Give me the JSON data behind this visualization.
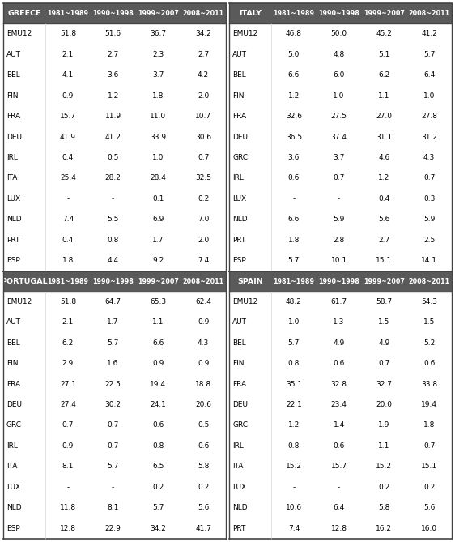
{
  "header_bg": "#5a5a5a",
  "header_text_color": "#ffffff",
  "cell_bg": "#ffffff",
  "cell_text_color": "#000000",
  "period_cols": [
    "1981~1989",
    "1990~1998",
    "1999~2007",
    "2008~2011"
  ],
  "tables": [
    {
      "country": "GREECE",
      "rows": [
        [
          "EMU12",
          "51.8",
          "51.6",
          "36.7",
          "34.2"
        ],
        [
          "AUT",
          "2.1",
          "2.7",
          "2.3",
          "2.7"
        ],
        [
          "BEL",
          "4.1",
          "3.6",
          "3.7",
          "4.2"
        ],
        [
          "FIN",
          "0.9",
          "1.2",
          "1.8",
          "2.0"
        ],
        [
          "FRA",
          "15.7",
          "11.9",
          "11.0",
          "10.7"
        ],
        [
          "DEU",
          "41.9",
          "41.2",
          "33.9",
          "30.6"
        ],
        [
          "IRL",
          "0.4",
          "0.5",
          "1.0",
          "0.7"
        ],
        [
          "ITA",
          "25.4",
          "28.2",
          "28.4",
          "32.5"
        ],
        [
          "LUX",
          "-",
          "-",
          "0.1",
          "0.2"
        ],
        [
          "NLD",
          "7.4",
          "5.5",
          "6.9",
          "7.0"
        ],
        [
          "PRT",
          "0.4",
          "0.8",
          "1.7",
          "2.0"
        ],
        [
          "ESP",
          "1.8",
          "4.4",
          "9.2",
          "7.4"
        ]
      ]
    },
    {
      "country": "ITALY",
      "rows": [
        [
          "EMU12",
          "46.8",
          "50.0",
          "45.2",
          "41.2"
        ],
        [
          "AUT",
          "5.0",
          "4.8",
          "5.1",
          "5.7"
        ],
        [
          "BEL",
          "6.6",
          "6.0",
          "6.2",
          "6.4"
        ],
        [
          "FIN",
          "1.2",
          "1.0",
          "1.1",
          "1.0"
        ],
        [
          "FRA",
          "32.6",
          "27.5",
          "27.0",
          "27.8"
        ],
        [
          "DEU",
          "36.5",
          "37.4",
          "31.1",
          "31.2"
        ],
        [
          "GRC",
          "3.6",
          "3.7",
          "4.6",
          "4.3"
        ],
        [
          "IRL",
          "0.6",
          "0.7",
          "1.2",
          "0.7"
        ],
        [
          "LUX",
          "-",
          "-",
          "0.4",
          "0.3"
        ],
        [
          "NLD",
          "6.6",
          "5.9",
          "5.6",
          "5.9"
        ],
        [
          "PRT",
          "1.8",
          "2.8",
          "2.7",
          "2.5"
        ],
        [
          "ESP",
          "5.7",
          "10.1",
          "15.1",
          "14.1"
        ]
      ]
    },
    {
      "country": "PORTUGAL",
      "rows": [
        [
          "EMU12",
          "51.8",
          "64.7",
          "65.3",
          "62.4"
        ],
        [
          "AUT",
          "2.1",
          "1.7",
          "1.1",
          "0.9"
        ],
        [
          "BEL",
          "6.2",
          "5.7",
          "6.6",
          "4.3"
        ],
        [
          "FIN",
          "2.9",
          "1.6",
          "0.9",
          "0.9"
        ],
        [
          "FRA",
          "27.1",
          "22.5",
          "19.4",
          "18.8"
        ],
        [
          "DEU",
          "27.4",
          "30.2",
          "24.1",
          "20.6"
        ],
        [
          "GRC",
          "0.7",
          "0.7",
          "0.6",
          "0.5"
        ],
        [
          "IRL",
          "0.9",
          "0.7",
          "0.8",
          "0.6"
        ],
        [
          "ITA",
          "8.1",
          "5.7",
          "6.5",
          "5.8"
        ],
        [
          "LUX",
          "-",
          "-",
          "0.2",
          "0.2"
        ],
        [
          "NLD",
          "11.8",
          "8.1",
          "5.7",
          "5.6"
        ],
        [
          "ESP",
          "12.8",
          "22.9",
          "34.2",
          "41.7"
        ]
      ]
    },
    {
      "country": "SPAIN",
      "rows": [
        [
          "EMU12",
          "48.2",
          "61.7",
          "58.7",
          "54.3"
        ],
        [
          "AUT",
          "1.0",
          "1.3",
          "1.5",
          "1.5"
        ],
        [
          "BEL",
          "5.7",
          "4.9",
          "4.9",
          "5.2"
        ],
        [
          "FIN",
          "0.8",
          "0.6",
          "0.7",
          "0.6"
        ],
        [
          "FRA",
          "35.1",
          "32.8",
          "32.7",
          "33.8"
        ],
        [
          "DEU",
          "22.1",
          "23.4",
          "20.0",
          "19.4"
        ],
        [
          "GRC",
          "1.2",
          "1.4",
          "1.9",
          "1.8"
        ],
        [
          "IRL",
          "0.8",
          "0.6",
          "1.1",
          "0.7"
        ],
        [
          "ITA",
          "15.2",
          "15.7",
          "15.2",
          "15.1"
        ],
        [
          "LUX",
          "-",
          "-",
          "0.2",
          "0.2"
        ],
        [
          "NLD",
          "10.6",
          "6.4",
          "5.8",
          "5.6"
        ],
        [
          "PRT",
          "7.4",
          "12.8",
          "16.2",
          "16.0"
        ]
      ]
    }
  ]
}
